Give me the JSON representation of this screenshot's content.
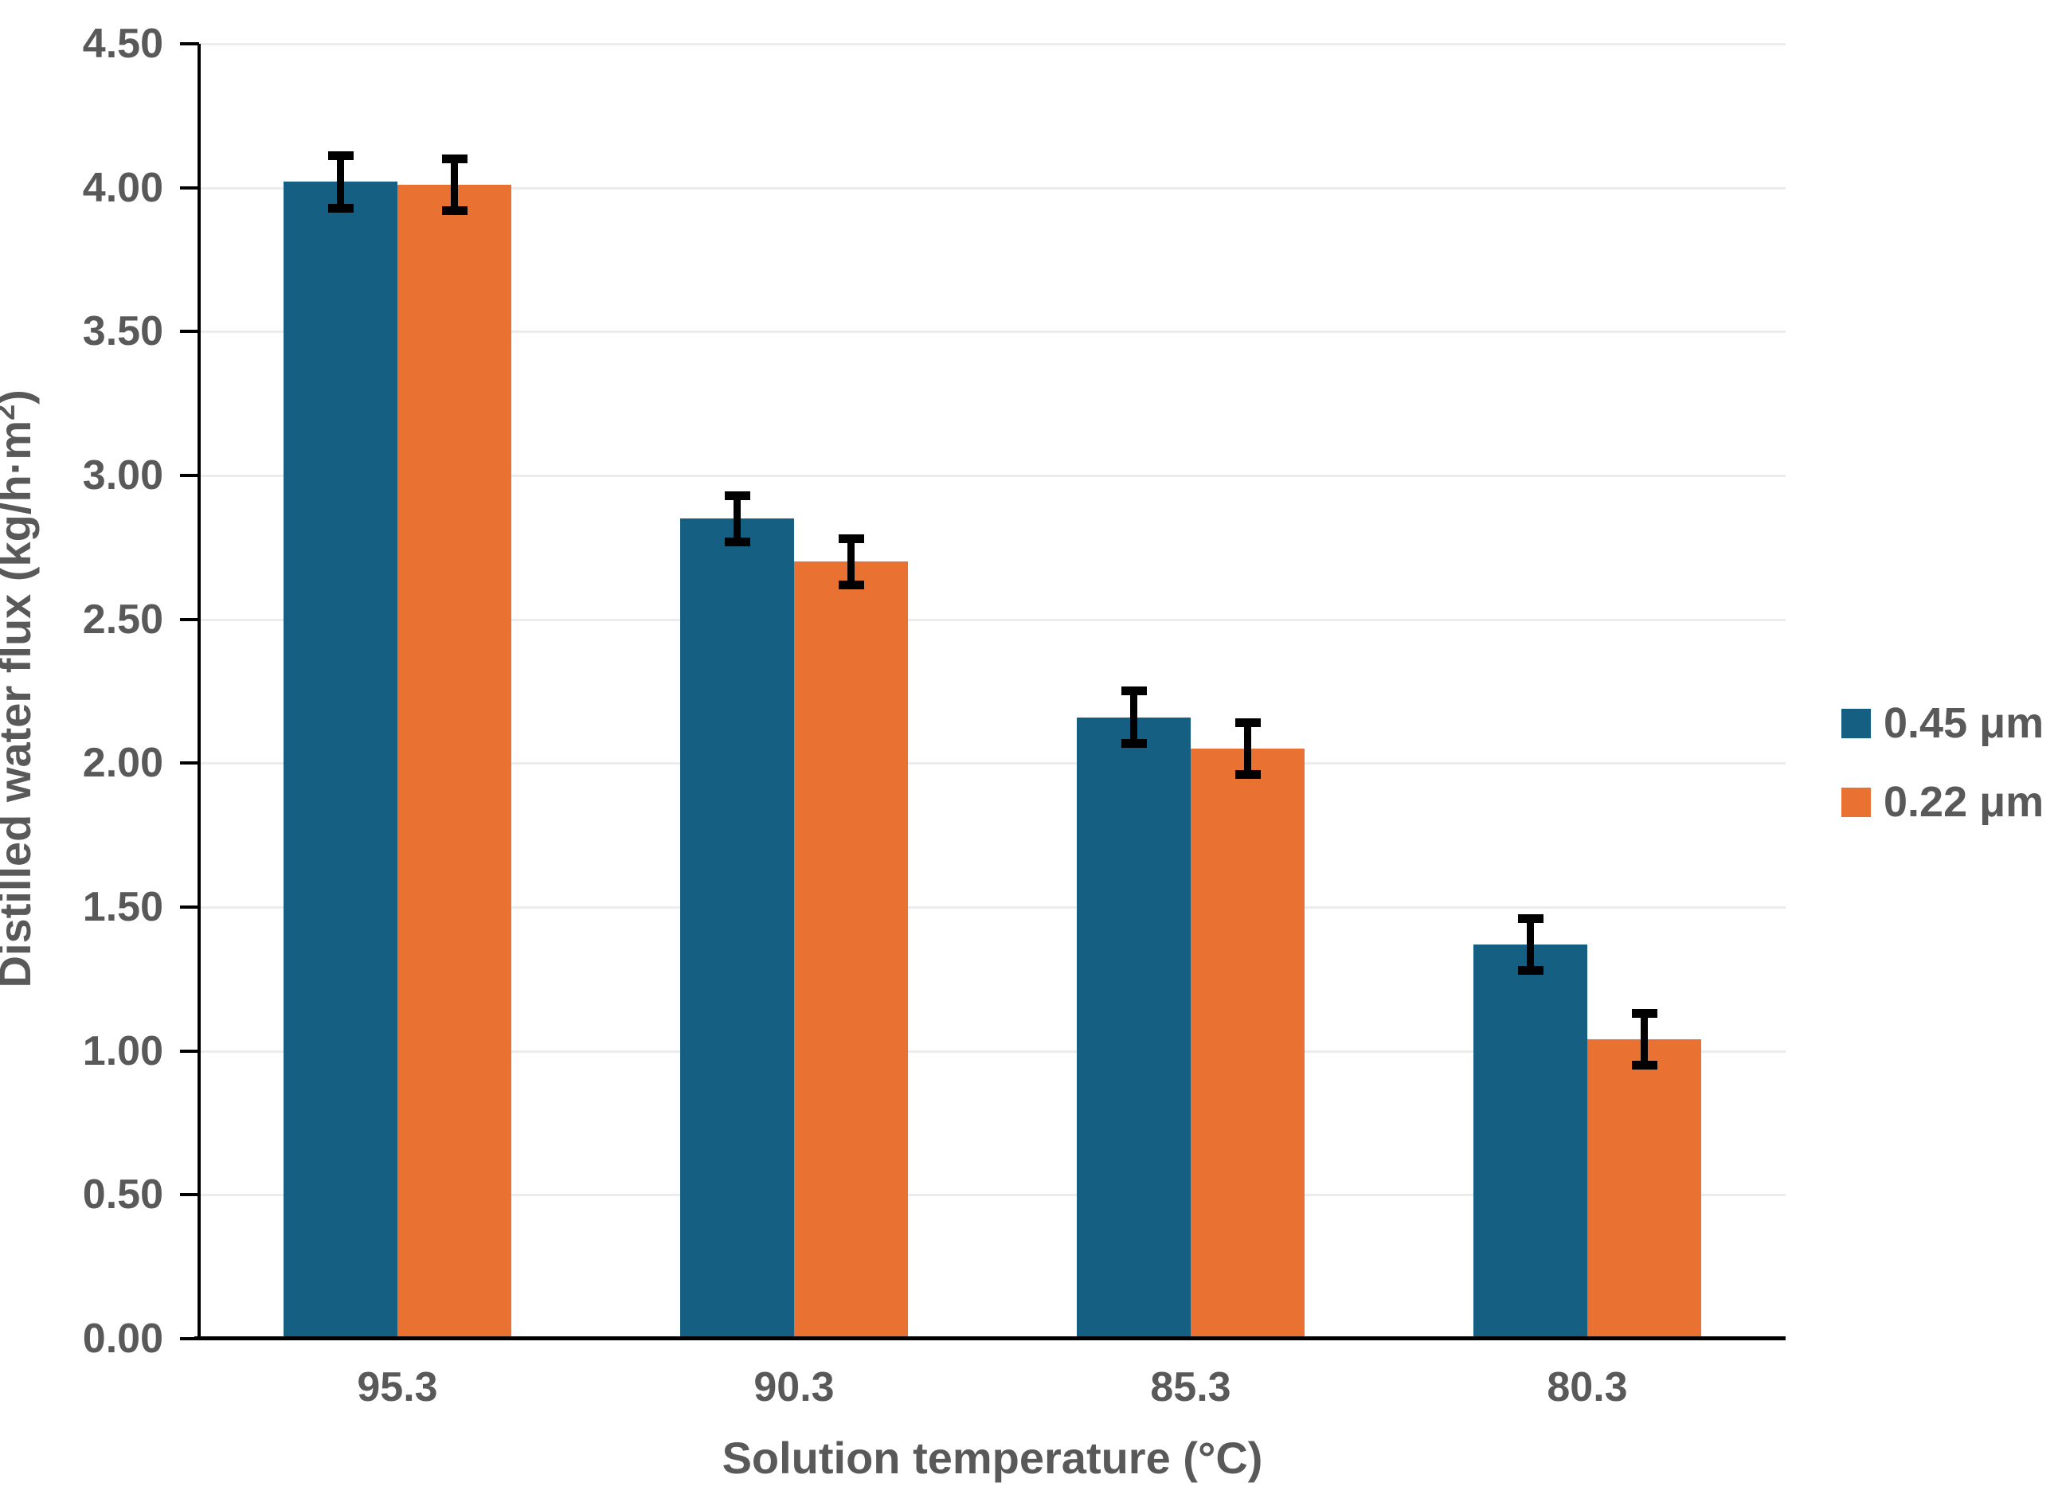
{
  "chart_data": {
    "type": "bar",
    "title": "",
    "xlabel": "Solution temperature (°C)",
    "ylabel": "Distilled water flux (kg/h·m²)",
    "ylabel_parts": {
      "prefix": "Distilled water flux (kg/h·m",
      "sup": "2",
      "suffix": ")"
    },
    "categories": [
      "95.3",
      "90.3",
      "85.3",
      "80.3"
    ],
    "series": [
      {
        "name": "0.45 μm",
        "color": "#156082",
        "values": [
          4.02,
          2.85,
          2.16,
          1.37
        ],
        "errors": [
          0.1,
          0.09,
          0.1,
          0.1
        ]
      },
      {
        "name": "0.22 μm",
        "color": "#E97132",
        "values": [
          4.01,
          2.7,
          2.05,
          1.04
        ],
        "errors": [
          0.1,
          0.09,
          0.1,
          0.1
        ]
      }
    ],
    "ylim": [
      0.0,
      4.5
    ],
    "ytick_step": 0.5,
    "ytick_format_decimals": 2,
    "grid": true,
    "legend_position": "right",
    "error_bars": true,
    "colors": {
      "axis": "#000000",
      "gridline": "#ececec",
      "tick_text": "#595959",
      "title_text": "#595959",
      "error_bar": "#000000"
    }
  }
}
